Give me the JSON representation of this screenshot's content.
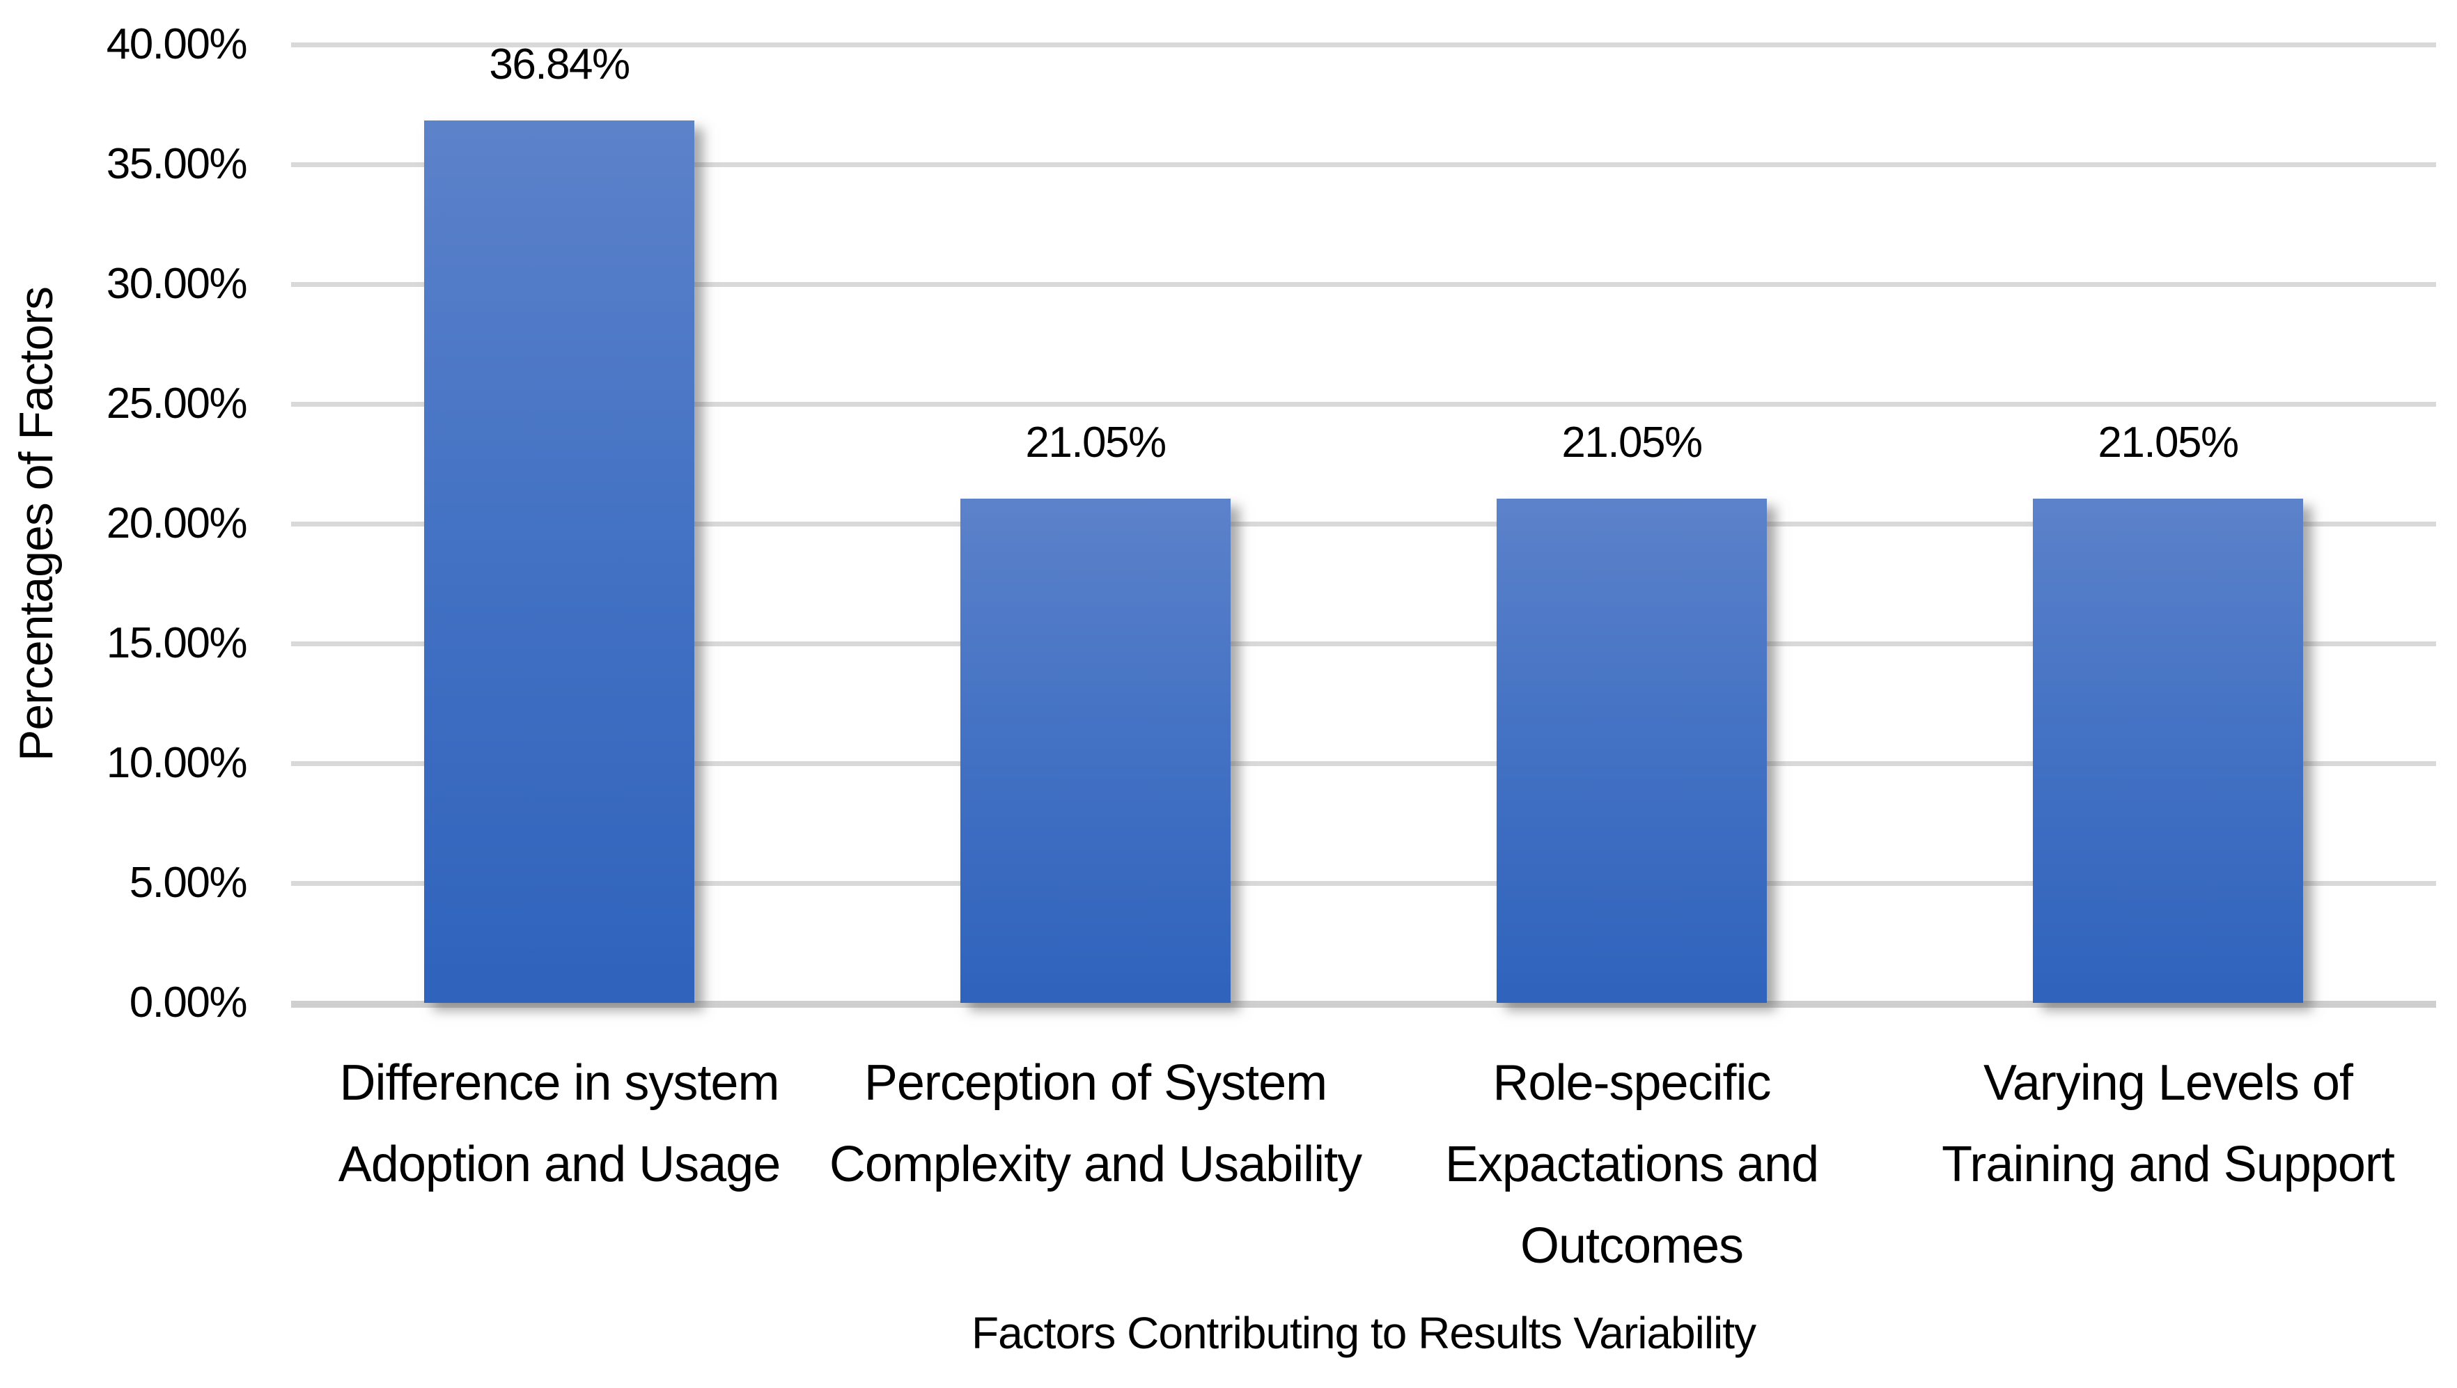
{
  "chart_data": {
    "type": "bar",
    "xlabel": "Factors Contributing to Results Variability",
    "ylabel": "Percentages of Factors",
    "categories": [
      "Difference in system\nAdoption and Usage",
      "Perception of System\nComplexity and Usability",
      "Role-specific\nExpactations and\nOutcomes",
      "Varying Levels of\nTraining and Support"
    ],
    "values": [
      36.84,
      21.05,
      21.05,
      21.05
    ],
    "value_labels": [
      "36.84%",
      "21.05%",
      "21.05%",
      "21.05%"
    ],
    "ylim": [
      0,
      40
    ],
    "ytick_step": 5,
    "ytick_labels": [
      "0.00%",
      "5.00%",
      "10.00%",
      "15.00%",
      "20.00%",
      "25.00%",
      "30.00%",
      "35.00%",
      "40.00%"
    ],
    "grid": true,
    "legend": false,
    "bar_color": "#4472c4",
    "bar_gradient_top": "#5c82ca",
    "bar_gradient_bottom": "#2f63bc",
    "gridline_color": "#d9d9d9",
    "text_color": "#000000",
    "background_color": "#ffffff"
  }
}
